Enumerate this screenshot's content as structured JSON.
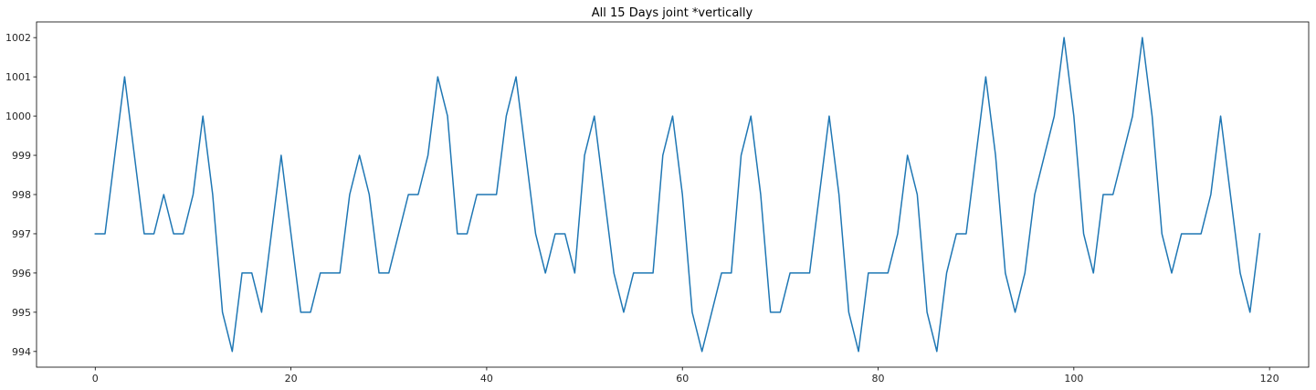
{
  "chart_data": {
    "type": "line",
    "title": "All 15 Days joint *vertically",
    "xlabel": "",
    "ylabel": "",
    "xlim": [
      -6,
      124
    ],
    "ylim": [
      993.6,
      1002.4
    ],
    "xticks": [
      0,
      20,
      40,
      60,
      80,
      100,
      120
    ],
    "yticks": [
      994,
      995,
      996,
      997,
      998,
      999,
      1000,
      1001,
      1002
    ],
    "grid": false,
    "series": [
      {
        "color": "#1f77b4",
        "x": [
          0,
          1,
          2,
          3,
          4,
          5,
          6,
          7,
          8,
          9,
          10,
          11,
          12,
          13,
          14,
          15,
          16,
          17,
          18,
          19,
          20,
          21,
          22,
          23,
          24,
          25,
          26,
          27,
          28,
          29,
          30,
          31,
          32,
          33,
          34,
          35,
          36,
          37,
          38,
          39,
          40,
          41,
          42,
          43,
          44,
          45,
          46,
          47,
          48,
          49,
          50,
          51,
          52,
          53,
          54,
          55,
          56,
          57,
          58,
          59,
          60,
          61,
          62,
          63,
          64,
          65,
          66,
          67,
          68,
          69,
          70,
          71,
          72,
          73,
          74,
          75,
          76,
          77,
          78,
          79,
          80,
          81,
          82,
          83,
          84,
          85,
          86,
          87,
          88,
          89,
          90,
          91,
          92,
          93,
          94,
          95,
          96,
          97,
          98,
          99,
          100,
          101,
          102,
          103,
          104,
          105,
          106,
          107,
          108,
          109,
          110,
          111,
          112,
          113,
          114,
          115,
          116,
          117,
          118,
          119
        ],
        "values": [
          997,
          997,
          999,
          1001,
          999,
          997,
          997,
          998,
          997,
          997,
          998,
          1000,
          998,
          995,
          994,
          996,
          996,
          995,
          997,
          999,
          997,
          995,
          995,
          996,
          996,
          996,
          998,
          999,
          998,
          996,
          996,
          997,
          998,
          998,
          999,
          1001,
          1000,
          997,
          997,
          998,
          998,
          998,
          1000,
          1001,
          999,
          997,
          996,
          997,
          997,
          996,
          999,
          1000,
          998,
          996,
          995,
          996,
          996,
          996,
          999,
          1000,
          998,
          995,
          994,
          995,
          996,
          996,
          999,
          1000,
          998,
          995,
          995,
          996,
          996,
          996,
          998,
          1000,
          998,
          995,
          994,
          996,
          996,
          996,
          997,
          999,
          998,
          995,
          994,
          996,
          997,
          997,
          999,
          1001,
          999,
          996,
          995,
          996,
          998,
          999,
          1000,
          1002,
          1000,
          997,
          996,
          998,
          998,
          999,
          1000,
          1002,
          1000,
          997,
          996,
          997,
          997,
          997,
          998,
          1000,
          998,
          996,
          995,
          997
        ]
      }
    ]
  }
}
